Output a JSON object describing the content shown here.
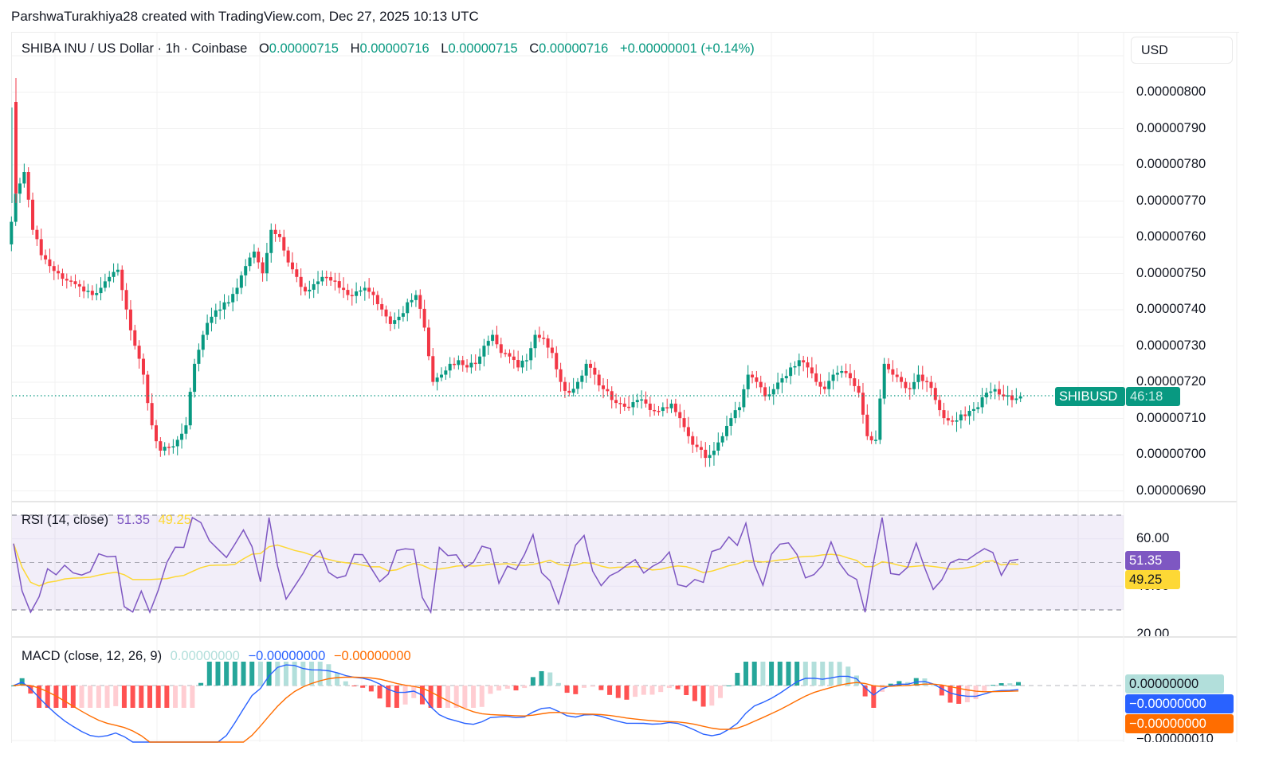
{
  "credit": "ParshwaTurakhiya28 created with TradingView.com, Dec 27, 2025 10:13 UTC",
  "header": {
    "symbol_title": "SHIBA INU / US Dollar · 1h · Coinbase",
    "open_label": "O",
    "open_value": "0.00000715",
    "high_label": "H",
    "high_value": "0.00000716",
    "low_label": "L",
    "low_value": "0.00000715",
    "close_label": "C",
    "close_value": "0.00000716",
    "change": "+0.00000001 (+0.14%)"
  },
  "currency_button": "USD",
  "price_axis": {
    "labels": [
      "0.00000800",
      "0.00000790",
      "0.00000780",
      "0.00000770",
      "0.00000760",
      "0.00000750",
      "0.00000740",
      "0.00000730",
      "0.00000720",
      "0.00000710",
      "0.00000700",
      "0.00000690"
    ]
  },
  "last_price_badge": {
    "symbol": "SHIBUSD",
    "countdown": "46:18"
  },
  "rsi": {
    "title": "RSI (14, close)",
    "value": "51.35",
    "ma_value": "49.25",
    "axis_labels": [
      "60.00",
      "40.00",
      "20.00"
    ],
    "badge_value": "51.35",
    "badge_ma": "49.25"
  },
  "macd": {
    "title": "MACD (close, 12, 26, 9)",
    "histogram_value": "0.00000000",
    "macd_value": "−0.00000000",
    "signal_value": "−0.00000000",
    "badge_hist": "0.00000000",
    "badge_macd": "−0.00000000",
    "badge_signal": "−0.00000000",
    "axis_label_bottom": "−0.00000010"
  },
  "colors": {
    "up": "#089981",
    "down": "#f23645",
    "rsi": "#7e57c2",
    "rsi_ma": "#fdd835",
    "macd": "#2962ff",
    "signal": "#ff6d00",
    "hist_up": "#26a69a",
    "hist_up_light": "#b2dfdb",
    "hist_down": "#ff5252",
    "hist_down_light": "#ffcdd2",
    "rsi_band": "#7e57c2"
  },
  "chart_data": [
    {
      "type": "candlestick",
      "title": "SHIBA INU / US Dollar · 1h · Coinbase",
      "ylabel": "USD",
      "ylim": [
        6.88e-06,
        8.08e-06
      ],
      "last_price": 7.16e-06,
      "ohlc_summary": {
        "open": 7.15e-06,
        "high": 7.16e-06,
        "low": 7.15e-06,
        "close": 7.16e-06,
        "change": 1e-08,
        "change_pct": 0.14
      },
      "close_path_approx": [
        7.72,
        7.78,
        7.62,
        7.55,
        7.52,
        7.5,
        7.48,
        7.47,
        7.45,
        7.44,
        7.46,
        7.49,
        7.51,
        7.4,
        7.3,
        7.22,
        7.08,
        7.01,
        7.02,
        7.04,
        7.08,
        7.25,
        7.33,
        7.38,
        7.4,
        7.42,
        7.46,
        7.52,
        7.56,
        7.5,
        7.62,
        7.6,
        7.53,
        7.49,
        7.45,
        7.47,
        7.49,
        7.48,
        7.46,
        7.44,
        7.45,
        7.46,
        7.44,
        7.4,
        7.36,
        7.38,
        7.42,
        7.44,
        7.35,
        7.2,
        7.22,
        7.25,
        7.26,
        7.24,
        7.25,
        7.3,
        7.33,
        7.28,
        7.27,
        7.24,
        7.26,
        7.33,
        7.32,
        7.28,
        7.2,
        7.17,
        7.2,
        7.25,
        7.22,
        7.18,
        7.15,
        7.14,
        7.13,
        7.15,
        7.14,
        7.12,
        7.13,
        7.14,
        7.1,
        7.05,
        7.02,
        6.99,
        7.01,
        7.05,
        7.1,
        7.13,
        7.22,
        7.2,
        7.16,
        7.18,
        7.21,
        7.24,
        7.26,
        7.24,
        7.2,
        7.18,
        7.22,
        7.23,
        7.21,
        7.17,
        7.05,
        7.04,
        7.25,
        7.22,
        7.2,
        7.18,
        7.22,
        7.2,
        7.15,
        7.1,
        7.09,
        7.11,
        7.12,
        7.13,
        7.17,
        7.18,
        7.16,
        7.15,
        7.16
      ],
      "price_scale_note": "values ×1e-6 USD"
    },
    {
      "type": "line",
      "title": "RSI (14, close)",
      "series": [
        {
          "name": "RSI",
          "last": 51.35
        },
        {
          "name": "RSI-based MA",
          "last": 49.25
        }
      ],
      "bands": [
        70,
        50,
        30
      ],
      "ylim": [
        20,
        75
      ],
      "axis_ticks": [
        60,
        40,
        20
      ]
    },
    {
      "type": "line",
      "title": "MACD (close, 12, 26, 9)",
      "series": [
        {
          "name": "Histogram",
          "last": 0.0
        },
        {
          "name": "MACD",
          "last": -0.0
        },
        {
          "name": "Signal",
          "last": -0.0
        }
      ],
      "axis_ticks": [
        0.0,
        -1e-07
      ]
    }
  ]
}
